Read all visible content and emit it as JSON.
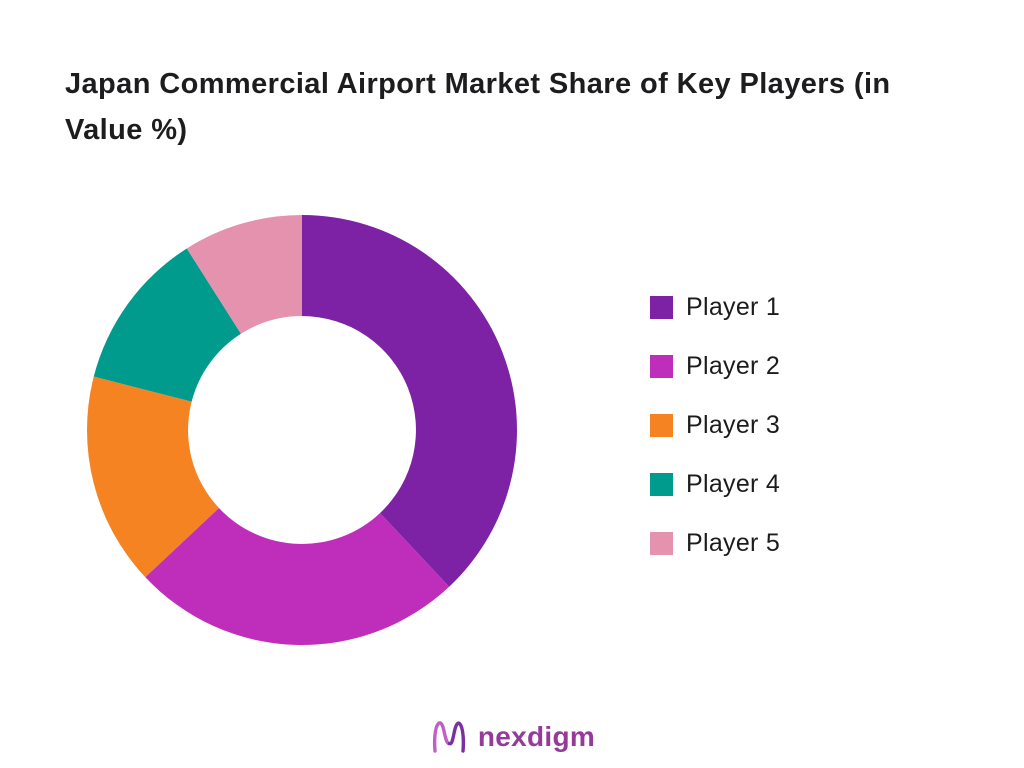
{
  "page": {
    "background": "#ffffff"
  },
  "chart_data": {
    "type": "pie",
    "subtype": "donut",
    "title": "Japan Commercial Airport Market Share of Key Players (in Value %)",
    "title_color": "#1d1d1f",
    "start_angle_deg": 0,
    "direction": "clockwise",
    "inner_radius_ratio": 0.53,
    "legend_position": "right",
    "grid": false,
    "series": [
      {
        "name": "Player 1",
        "value": 38,
        "color": "#7D21A5"
      },
      {
        "name": "Player 2",
        "value": 25,
        "color": "#BF2EBB"
      },
      {
        "name": "Player 3",
        "value": 16,
        "color": "#F58321"
      },
      {
        "name": "Player 4",
        "value": 12,
        "color": "#009B8C"
      },
      {
        "name": "Player 5",
        "value": 9,
        "color": "#E492AE"
      }
    ]
  },
  "brand": {
    "name": "nexdigm",
    "color": "#953A9B",
    "icon": "nexdigm-wave-icon"
  }
}
